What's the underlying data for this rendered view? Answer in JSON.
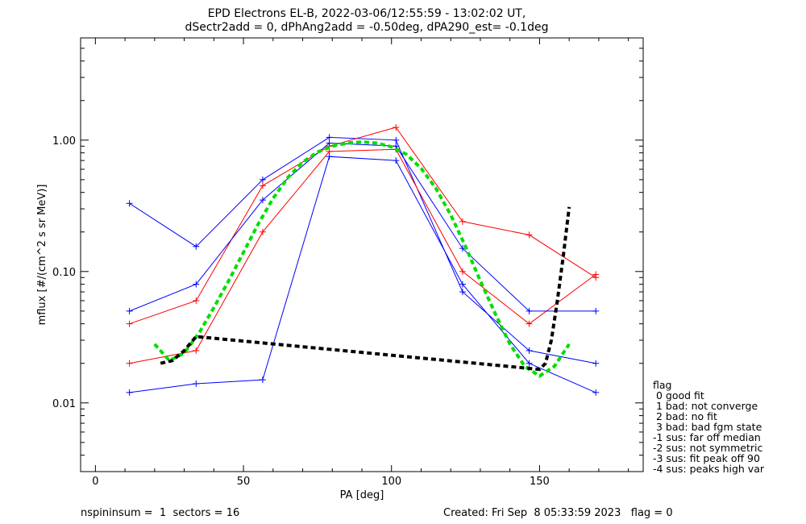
{
  "chart_data": {
    "type": "line",
    "title": "EPD Electrons EL-B, 2022-03-06/12:55:59 - 13:02:02 UT,",
    "subtitle": "dSectr2add = 0, dPhAng2add = -0.50deg, dPA290_est=  -0.1deg",
    "xlabel": "PA [deg]",
    "ylabel": "mflux [#/(cm^2 s sr MeV)]",
    "xlim": [
      -5,
      185
    ],
    "ylim": [
      0.003,
      6.0
    ],
    "yscale": "log",
    "grid": false,
    "xticks": [
      0,
      50,
      100,
      150
    ],
    "xtick_labels": [
      "0",
      "50",
      "100",
      "150"
    ],
    "yticks": [
      0.01,
      0.1,
      1.0
    ],
    "ytick_labels": [
      "0.01",
      "0.10",
      "1.00"
    ],
    "sector_pa": [
      11.5,
      34,
      56.5,
      79,
      101.5,
      124,
      146.5,
      169
    ],
    "series": [
      {
        "color": "#0000ff",
        "values": [
          0.33,
          0.155,
          0.5,
          1.05,
          1.0,
          0.07,
          0.025,
          0.02
        ]
      },
      {
        "color": "#ff0000",
        "values": [
          0.04,
          0.06,
          0.45,
          0.9,
          1.25,
          0.24,
          0.19,
          0.09
        ]
      },
      {
        "color": "#ff0000",
        "values": [
          0.02,
          0.025,
          0.2,
          0.82,
          0.85,
          0.1,
          0.04,
          0.095
        ]
      },
      {
        "color": "#0000ff",
        "values": [
          0.05,
          0.08,
          0.35,
          0.95,
          0.9,
          0.15,
          0.05,
          0.05
        ]
      },
      {
        "color": "#0000ff",
        "values": [
          0.012,
          0.014,
          0.015,
          0.75,
          0.7,
          0.08,
          0.02,
          0.012
        ]
      }
    ],
    "fit_lines": [
      {
        "color": "#00dd00",
        "x": [
          20,
          25,
          30,
          35,
          40,
          45,
          50,
          55,
          60,
          65,
          70,
          75,
          80,
          85,
          90,
          95,
          100,
          105,
          110,
          115,
          120,
          125,
          130,
          135,
          140,
          145,
          150,
          155,
          160
        ],
        "values": [
          0.028,
          0.021,
          0.024,
          0.034,
          0.053,
          0.085,
          0.14,
          0.23,
          0.36,
          0.52,
          0.68,
          0.81,
          0.9,
          0.95,
          0.97,
          0.95,
          0.89,
          0.78,
          0.61,
          0.43,
          0.27,
          0.155,
          0.085,
          0.048,
          0.028,
          0.019,
          0.016,
          0.019,
          0.028
        ]
      },
      {
        "color": "#000000",
        "x": [
          22,
          26,
          30,
          34,
          150,
          152,
          154,
          156,
          158,
          160
        ],
        "values": [
          0.02,
          0.021,
          0.025,
          0.032,
          0.018,
          0.02,
          0.03,
          0.06,
          0.13,
          0.31
        ]
      }
    ],
    "legend": {
      "position": "bottom-right",
      "title": "flag",
      "entries": [
        " 0 good fit",
        " 1 bad: not converge",
        " 2 bad: no fit",
        " 3 bad: bad fgm state",
        "-1 sus: far off median",
        "-2 sus: not symmetric",
        "-3 sus: fit peak off 90",
        "-4 sus: peaks high var"
      ]
    }
  },
  "footer": {
    "left": "nspininsum =  1  sectors = 16",
    "right": "Created: Fri Sep  8 05:33:59 2023   flag = 0"
  }
}
